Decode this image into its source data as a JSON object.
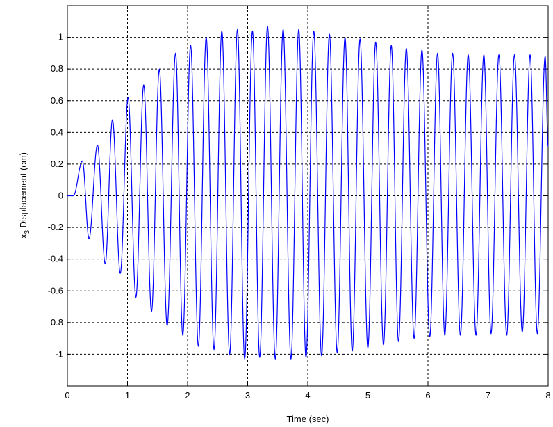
{
  "chart_data": {
    "type": "line",
    "xlabel": "Time (sec)",
    "ylabel_main": "x",
    "ylabel_sub": "3",
    "ylabel_rest": " Displacement (cm)",
    "xlim": [
      0,
      8
    ],
    "ylim": [
      -1.2,
      1.2
    ],
    "grid": true,
    "xticks": [
      0,
      1,
      2,
      3,
      4,
      5,
      6,
      7,
      8
    ],
    "xtick_labels": [
      "0",
      "1",
      "2",
      "3",
      "4",
      "5",
      "6",
      "7",
      "8"
    ],
    "yticks": [
      1,
      0.8,
      0.6,
      0.4,
      0.2,
      0,
      -0.2,
      -0.4,
      -0.6,
      -0.8,
      -1
    ],
    "ytick_labels": [
      "1",
      "0.8",
      "0.6",
      "0.4",
      "0.2",
      "0",
      "-0.2",
      "-0.4",
      "-0.6",
      "-0.8",
      "-1"
    ],
    "series": [
      {
        "color": "#0000ff",
        "start_time": 0.1,
        "peaks": [
          [
            0.25,
            0.22
          ],
          [
            0.36,
            -0.27
          ],
          [
            0.5,
            0.32
          ],
          [
            0.63,
            -0.43
          ],
          [
            0.75,
            0.48
          ],
          [
            0.88,
            -0.49
          ],
          [
            1.01,
            0.62
          ],
          [
            1.14,
            -0.64
          ],
          [
            1.27,
            0.7
          ],
          [
            1.4,
            -0.73
          ],
          [
            1.53,
            0.8
          ],
          [
            1.66,
            -0.82
          ],
          [
            1.8,
            0.9
          ],
          [
            1.92,
            -0.88
          ],
          [
            2.05,
            0.95
          ],
          [
            2.18,
            -0.95
          ],
          [
            2.31,
            1.0
          ],
          [
            2.44,
            -0.97
          ],
          [
            2.57,
            1.04
          ],
          [
            2.7,
            -1.0
          ],
          [
            2.83,
            1.05
          ],
          [
            2.95,
            -1.03
          ],
          [
            3.08,
            1.04
          ],
          [
            3.2,
            -1.02
          ],
          [
            3.33,
            1.07
          ],
          [
            3.46,
            -1.03
          ],
          [
            3.59,
            1.05
          ],
          [
            3.72,
            -1.03
          ],
          [
            3.85,
            1.05
          ],
          [
            3.97,
            -1.02
          ],
          [
            4.1,
            1.04
          ],
          [
            4.23,
            -1.01
          ],
          [
            4.36,
            1.02
          ],
          [
            4.49,
            -0.99
          ],
          [
            4.62,
            1.0
          ],
          [
            4.74,
            -0.98
          ],
          [
            4.87,
            0.99
          ],
          [
            5.0,
            -0.96
          ],
          [
            5.13,
            0.97
          ],
          [
            5.26,
            -0.94
          ],
          [
            5.39,
            0.95
          ],
          [
            5.51,
            -0.92
          ],
          [
            5.64,
            0.93
          ],
          [
            5.77,
            -0.9
          ],
          [
            5.9,
            0.92
          ],
          [
            6.03,
            -0.89
          ],
          [
            6.16,
            0.9
          ],
          [
            6.28,
            -0.88
          ],
          [
            6.41,
            0.9
          ],
          [
            6.54,
            -0.88
          ],
          [
            6.67,
            0.89
          ],
          [
            6.8,
            -0.88
          ],
          [
            6.93,
            0.89
          ],
          [
            7.05,
            -0.87
          ],
          [
            7.18,
            0.89
          ],
          [
            7.31,
            -0.88
          ],
          [
            7.44,
            0.89
          ],
          [
            7.57,
            -0.86
          ],
          [
            7.7,
            0.89
          ],
          [
            7.82,
            -0.87
          ],
          [
            7.95,
            0.88
          ]
        ]
      }
    ]
  }
}
